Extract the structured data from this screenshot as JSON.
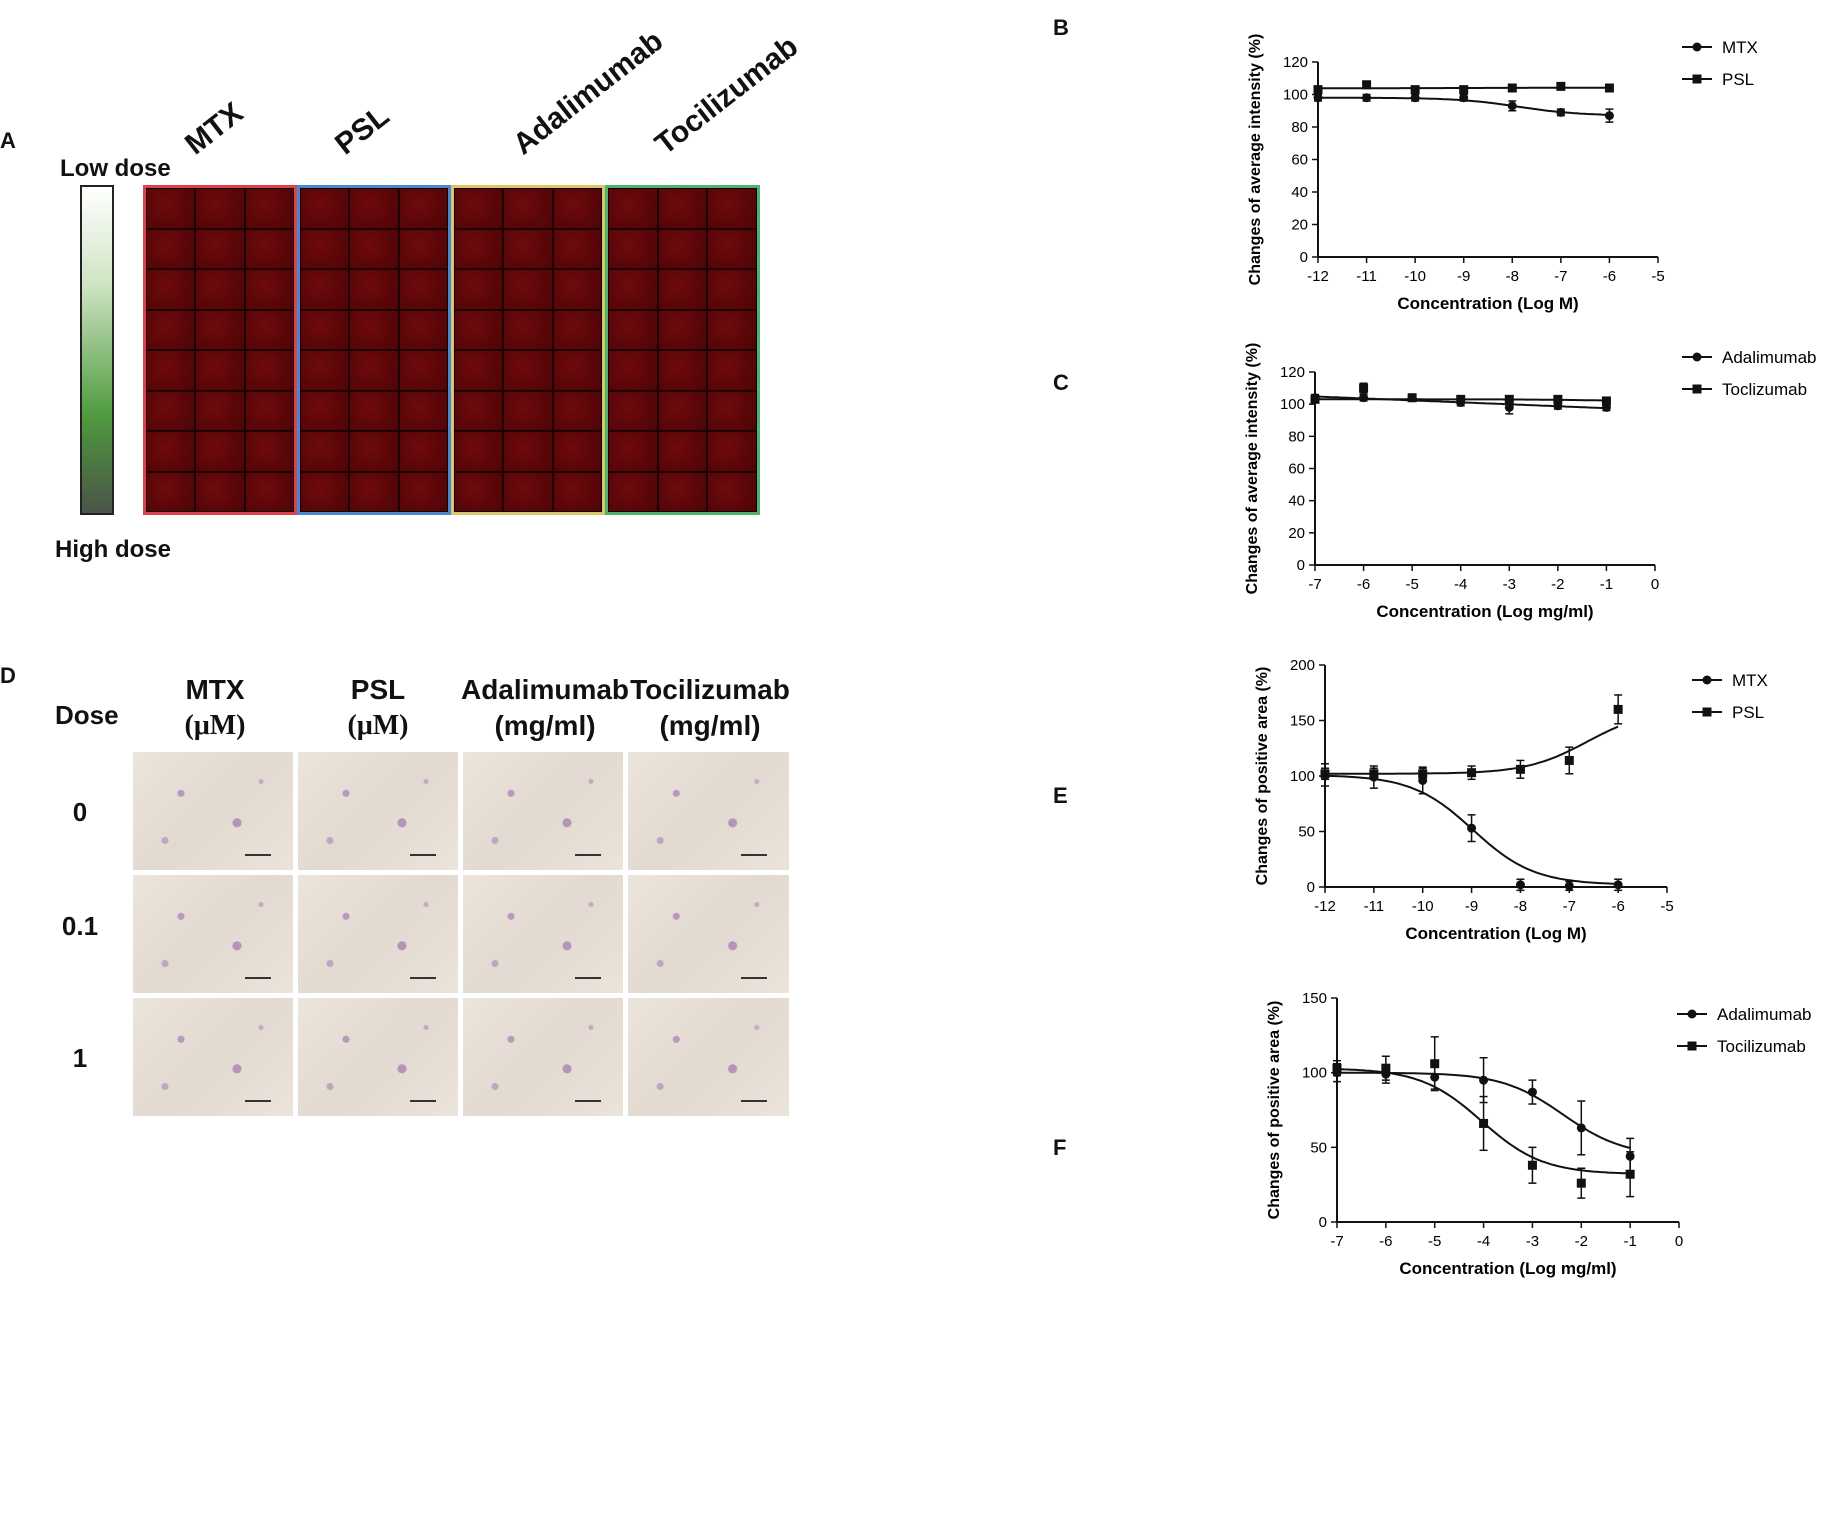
{
  "panel_a": {
    "letter": "A",
    "low_dose_label": "Low dose",
    "high_dose_label": "High dose",
    "drug_labels": [
      "MTX",
      "PSL",
      "Adalimumab",
      "Tocilizumab"
    ],
    "group_border_colors": [
      "#d9434b",
      "#4b86d6",
      "#d8c86a",
      "#4db36e"
    ]
  },
  "panel_d": {
    "letter": "D",
    "dose_header": "Dose",
    "columns": [
      {
        "name": "MTX",
        "unit": "(μM)"
      },
      {
        "name": "PSL",
        "unit": "(μM)"
      },
      {
        "name": "Adalimumab",
        "unit": "(mg/ml)"
      },
      {
        "name": "Tocilizumab",
        "unit": "(mg/ml)"
      }
    ],
    "doses": [
      "0",
      "0.1",
      "1"
    ]
  },
  "chart_data": [
    {
      "panel": "B",
      "type": "line",
      "ylabel": "Changes of average intensity (%)",
      "xlabel": "Concentration (Log M)",
      "xlim": [
        -12,
        -5
      ],
      "ylim": [
        0,
        120
      ],
      "xticks": [
        -12,
        -11,
        -10,
        -9,
        -8,
        -7,
        -6,
        -5
      ],
      "yticks": [
        0,
        20,
        40,
        60,
        80,
        100,
        120
      ],
      "legend_position": "right",
      "series": [
        {
          "name": "MTX",
          "marker": "circle",
          "x": [
            -12,
            -11,
            -10,
            -9,
            -8,
            -7,
            -6
          ],
          "y": [
            98,
            98,
            98,
            98,
            93,
            89,
            87
          ],
          "err": [
            2,
            2,
            2,
            2,
            3,
            2,
            4
          ]
        },
        {
          "name": "PSL",
          "marker": "square",
          "x": [
            -12,
            -11,
            -10,
            -9,
            -8,
            -7,
            -6
          ],
          "y": [
            103,
            106,
            103,
            103,
            104,
            105,
            104
          ],
          "err": [
            2,
            2,
            2,
            2,
            2,
            2,
            2
          ]
        }
      ]
    },
    {
      "panel": "C",
      "type": "line",
      "ylabel": "Changes of average intensity (%)",
      "xlabel": "Concentration (Log mg/ml)",
      "xlim": [
        -7,
        0
      ],
      "ylim": [
        0,
        120
      ],
      "xticks": [
        -7,
        -6,
        -5,
        -4,
        -3,
        -2,
        -1,
        0
      ],
      "yticks": [
        0,
        20,
        40,
        60,
        80,
        100,
        120
      ],
      "legend_position": "right",
      "series": [
        {
          "name": "Adalimumab",
          "marker": "circle",
          "x": [
            -7,
            -6,
            -5,
            -4,
            -3,
            -2,
            -1
          ],
          "y": [
            104,
            104,
            104,
            101,
            98,
            99,
            98
          ],
          "err": [
            2,
            2,
            2,
            2,
            4,
            2,
            2
          ]
        },
        {
          "name": "Toclizumab",
          "marker": "square",
          "x": [
            -7,
            -6,
            -5,
            -4,
            -3,
            -2,
            -1
          ],
          "y": [
            103,
            110,
            104,
            103,
            103,
            103,
            102
          ],
          "err": [
            2,
            3,
            2,
            2,
            2,
            2,
            2
          ]
        }
      ]
    },
    {
      "panel": "E",
      "type": "line",
      "ylabel": "Changes of positive area (%)",
      "xlabel": "Concentration (Log M)",
      "xlim": [
        -12,
        -5
      ],
      "ylim": [
        0,
        200
      ],
      "xticks": [
        -12,
        -11,
        -10,
        -9,
        -8,
        -7,
        -6,
        -5
      ],
      "yticks": [
        0,
        50,
        100,
        150,
        200
      ],
      "legend_position": "right",
      "series": [
        {
          "name": "MTX",
          "marker": "circle",
          "x": [
            -12,
            -11,
            -10,
            -9,
            -8,
            -7,
            -6
          ],
          "y": [
            101,
            99,
            96,
            53,
            2,
            1,
            2
          ],
          "err": [
            10,
            10,
            12,
            12,
            5,
            4,
            5
          ]
        },
        {
          "name": "PSL",
          "marker": "square",
          "x": [
            -12,
            -11,
            -10,
            -9,
            -8,
            -7,
            -6
          ],
          "y": [
            102,
            102,
            102,
            103,
            106,
            114,
            160
          ],
          "err": [
            5,
            5,
            5,
            6,
            8,
            12,
            13
          ]
        }
      ]
    },
    {
      "panel": "F",
      "type": "line",
      "ylabel": "Changes of positive area (%)",
      "xlabel": "Concentration (Log mg/ml)",
      "xlim": [
        -7,
        0
      ],
      "ylim": [
        0,
        150
      ],
      "xticks": [
        -7,
        -6,
        -5,
        -4,
        -3,
        -2,
        -1,
        0
      ],
      "yticks": [
        0,
        50,
        100,
        150
      ],
      "legend_position": "right",
      "series": [
        {
          "name": "Adalimumab",
          "marker": "circle",
          "x": [
            -7,
            -6,
            -5,
            -4,
            -3,
            -2,
            -1
          ],
          "y": [
            100,
            99,
            97,
            95,
            87,
            63,
            44
          ],
          "err": [
            6,
            6,
            8,
            15,
            8,
            18,
            12
          ]
        },
        {
          "name": "Tocilizumab",
          "marker": "square",
          "x": [
            -7,
            -6,
            -5,
            -4,
            -3,
            -2,
            -1
          ],
          "y": [
            103,
            103,
            106,
            66,
            38,
            26,
            32
          ],
          "err": [
            5,
            8,
            18,
            18,
            12,
            10,
            15
          ]
        }
      ]
    }
  ]
}
